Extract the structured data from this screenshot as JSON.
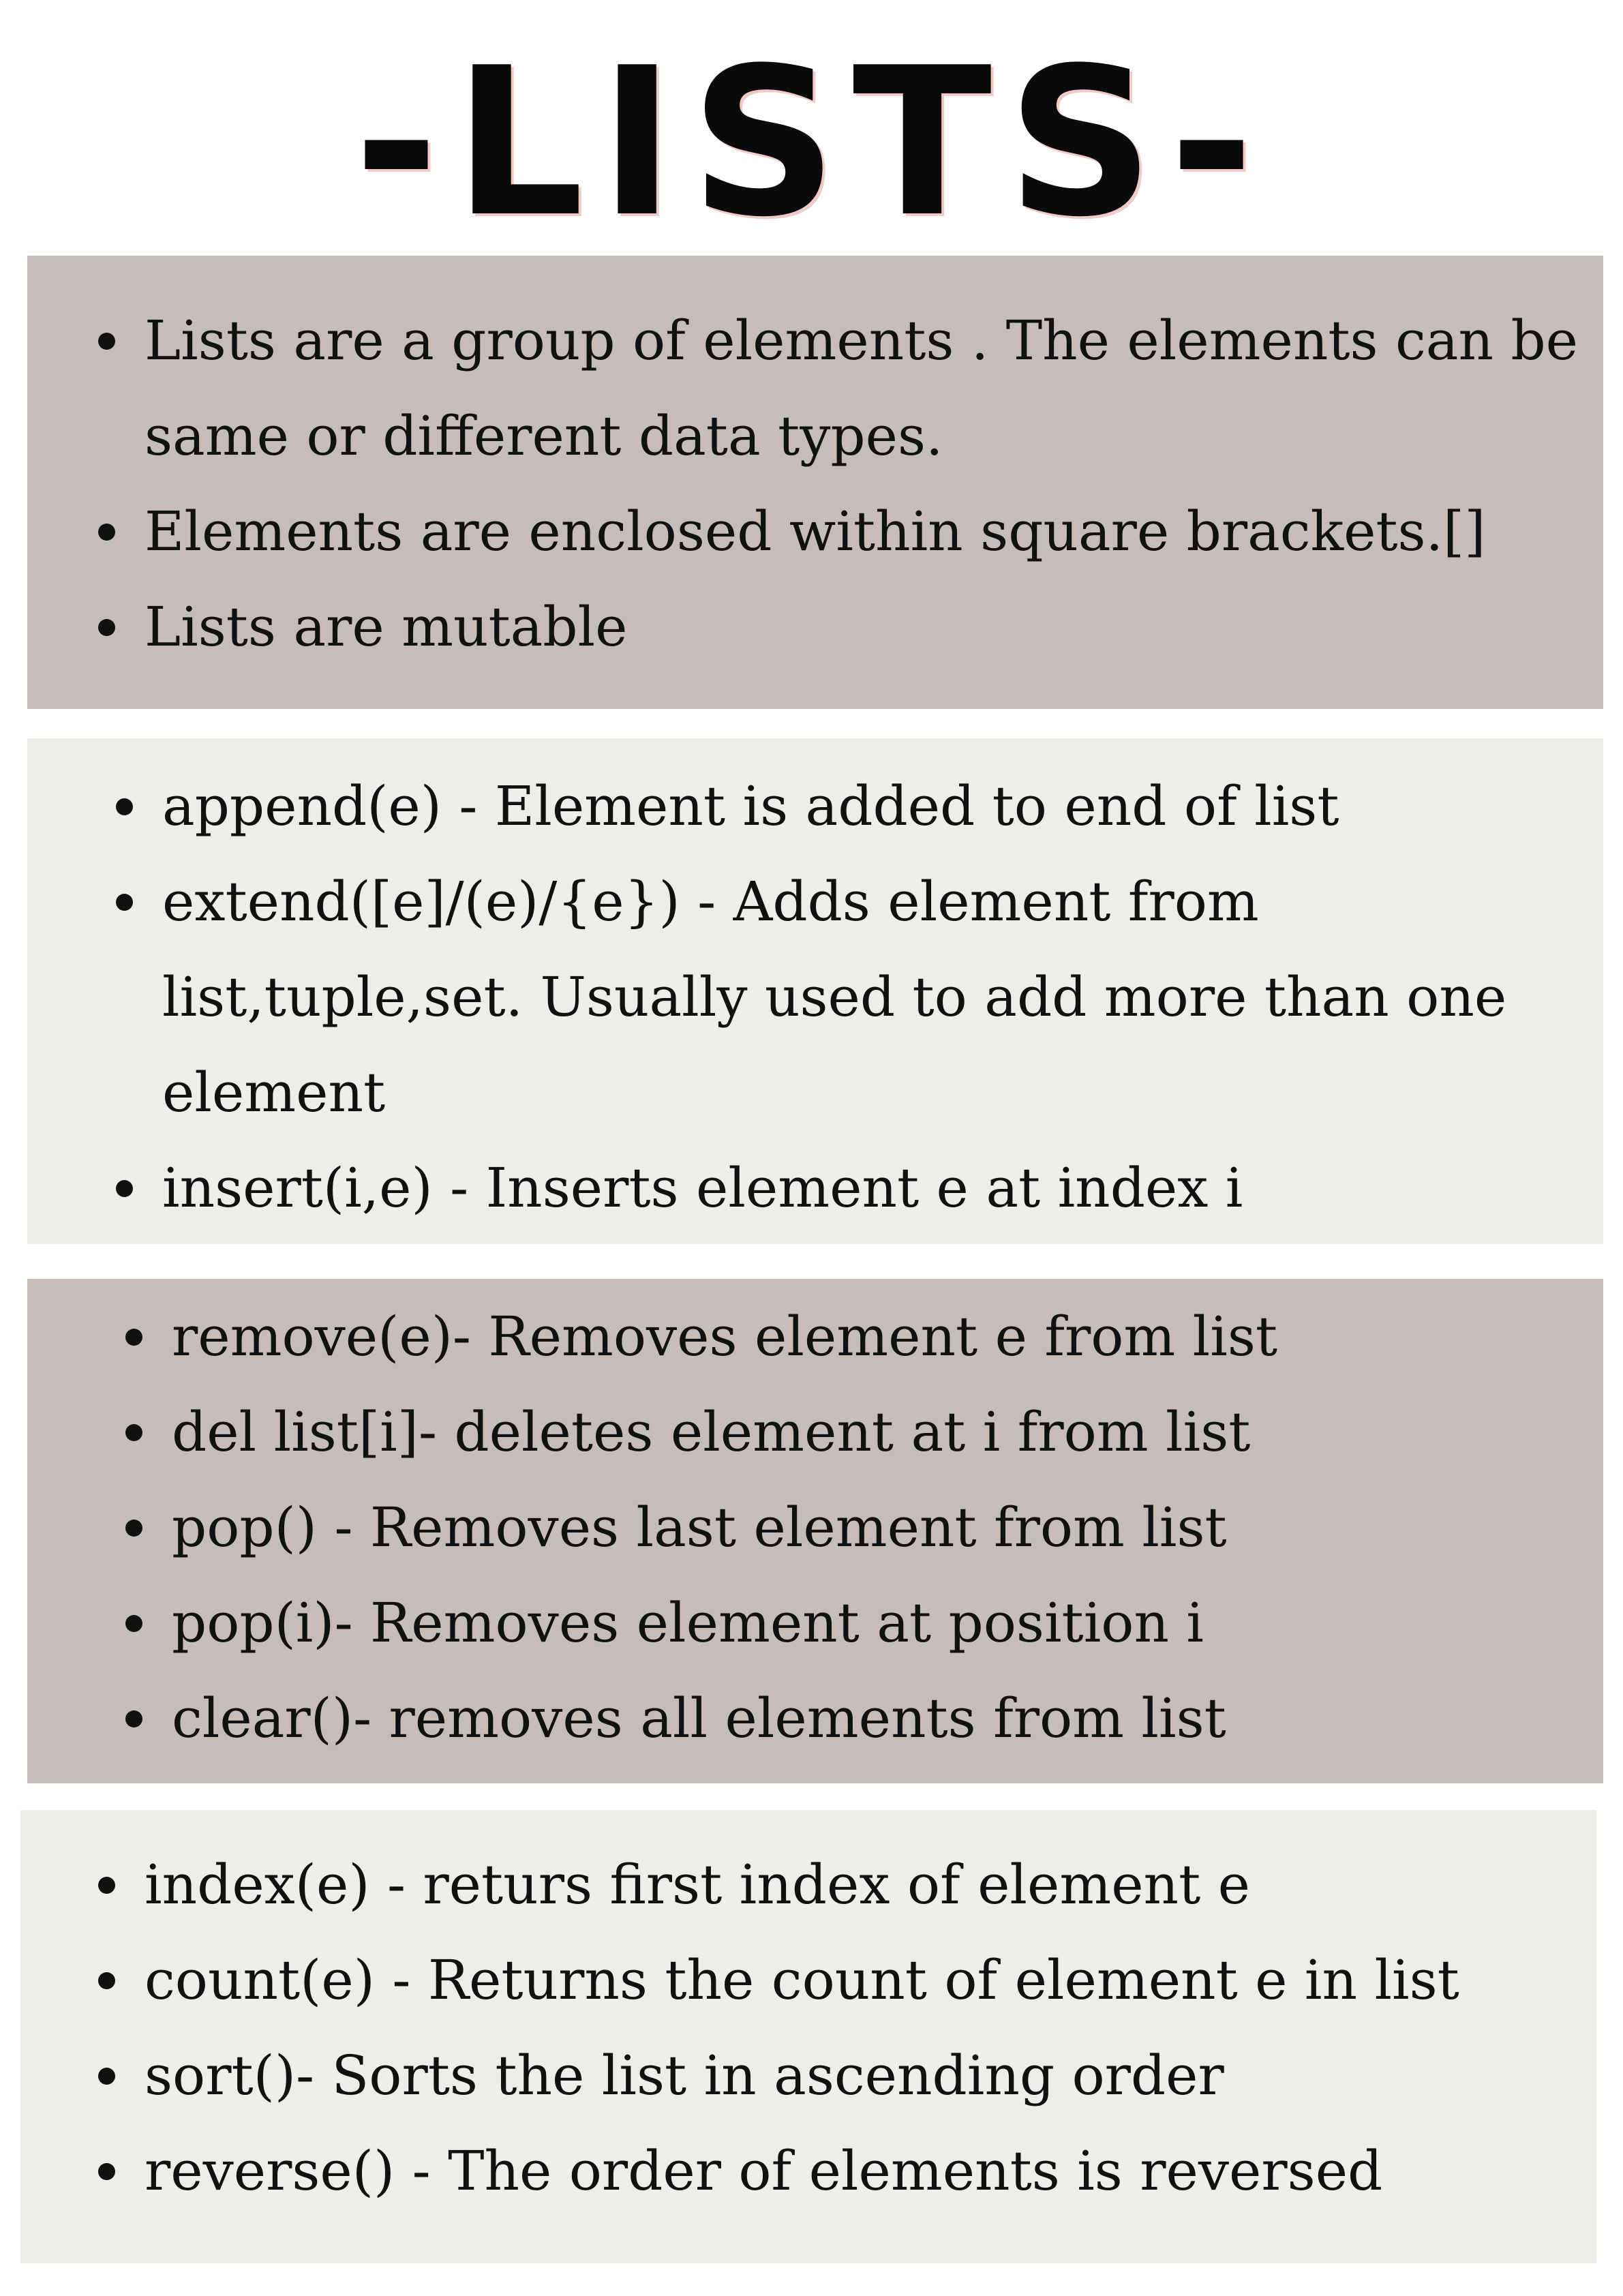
{
  "title": "-LISTS-",
  "sections": [
    {
      "items": [
        "Lists are a group of elements . The elements can be same or different data types.",
        "Elements are enclosed within square brackets.[]",
        "Lists are mutable"
      ]
    },
    {
      "items": [
        "append(e) - Element is added to end of list",
        "extend([e]/(e)/{e}) - Adds element from list,tuple,set. Usually used to add more than one element",
        "insert(i,e) - Inserts element e at index i"
      ]
    },
    {
      "items": [
        "remove(e)- Removes element e from list",
        "del list[i]- deletes element at i from list",
        "pop() - Removes last element from list",
        "pop(i)- Removes element at position i",
        "clear()- removes all elements from list"
      ]
    },
    {
      "items": [
        "index(e) - returs first index of element e",
        "count(e) - Returns the count of element e in list",
        "sort()- Sorts the list in ascending order",
        "reverse() - The order of elements is reversed"
      ]
    }
  ]
}
